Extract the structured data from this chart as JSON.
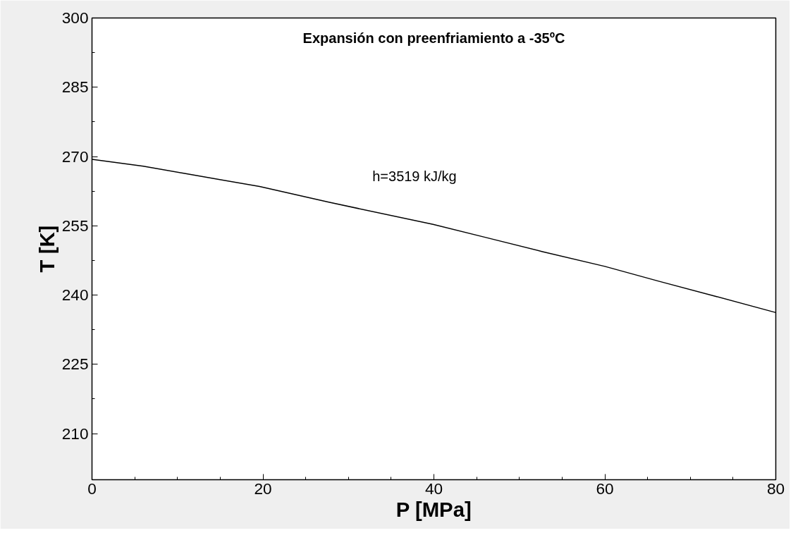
{
  "chart_data": {
    "type": "line",
    "title": "Expansión con preenfriamiento a -35ºC",
    "xlabel": "P [MPa]",
    "ylabel": "T [K]",
    "annotations": [
      "h=3519 kJ/kg"
    ],
    "x": [
      0,
      6,
      10.6,
      19.6,
      27.7,
      39.9,
      46,
      52.7,
      60,
      66.3,
      73,
      80
    ],
    "series": [
      {
        "color": "#000000",
        "values": [
          269.4,
          267.9,
          266.4,
          263.5,
          260.1,
          255.3,
          252.5,
          249.4,
          246.2,
          243.0,
          239.7,
          236.2
        ]
      }
    ],
    "xlim": [
      0,
      80
    ],
    "ylim": [
      200,
      300
    ],
    "xticks": [
      0,
      20,
      40,
      60,
      80
    ],
    "yticks": [
      210,
      225,
      240,
      255,
      270,
      285,
      300
    ],
    "grid": false,
    "marker": "none",
    "line_style": "solid"
  }
}
